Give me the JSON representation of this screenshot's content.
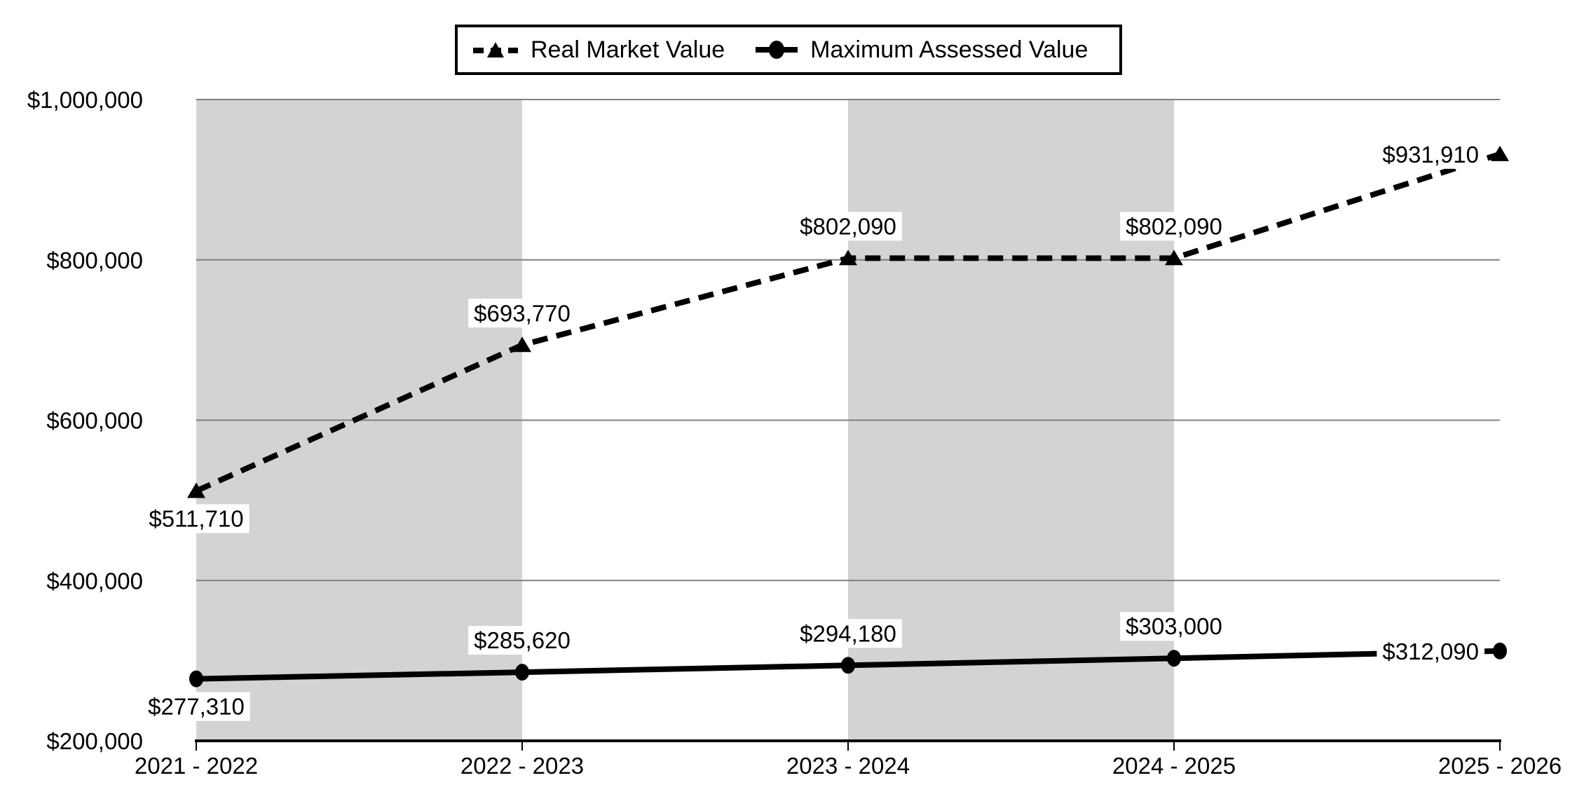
{
  "legend": {
    "items": [
      {
        "label": "Real Market Value",
        "marker": "dashed-line-triangle"
      },
      {
        "label": "Maximum Assessed Value",
        "marker": "solid-line-circle"
      }
    ]
  },
  "chart_data": {
    "type": "line",
    "title": "",
    "categories": [
      "2021 - 2022",
      "2022 - 2023",
      "2023 - 2024",
      "2024 - 2025",
      "2025 - 2026"
    ],
    "series": [
      {
        "name": "Real Market Value",
        "line_style": "dashed",
        "marker": "triangle",
        "color": "#000000",
        "values": [
          511710,
          693770,
          802090,
          802090,
          931910
        ],
        "data_labels": [
          "$511,710",
          "$693,770",
          "$802,090",
          "$802,090",
          "$931,910"
        ],
        "label_positions": [
          "below",
          "above",
          "above",
          "above",
          "left"
        ]
      },
      {
        "name": "Maximum Assessed Value",
        "line_style": "solid",
        "marker": "circle",
        "color": "#000000",
        "values": [
          277310,
          285620,
          294180,
          303000,
          312090
        ],
        "data_labels": [
          "$277,310",
          "$285,620",
          "$294,180",
          "$303,000",
          "$312,090"
        ],
        "label_positions": [
          "below",
          "above",
          "above",
          "above",
          "left"
        ]
      }
    ],
    "y_axis": {
      "min": 200000,
      "max": 1000000,
      "tick_step": 200000,
      "tick_labels": [
        "$200,000",
        "$400,000",
        "$600,000",
        "$800,000",
        "$1,000,000"
      ]
    },
    "x_axis": {
      "tick_labels": [
        "2021 - 2022",
        "2022 - 2023",
        "2023 - 2024",
        "2024 - 2025",
        "2025 - 2026"
      ]
    },
    "shaded_bands": [
      {
        "from": 0,
        "to": 1
      },
      {
        "from": 2,
        "to": 3
      }
    ],
    "grid": "horizontal",
    "legend_position": "top-center",
    "colors": {
      "band": "#d3d3d3",
      "gridline": "#808080",
      "axis": "#000000",
      "series": "#000000",
      "label_background": "#ffffff",
      "background": "#ffffff"
    }
  }
}
